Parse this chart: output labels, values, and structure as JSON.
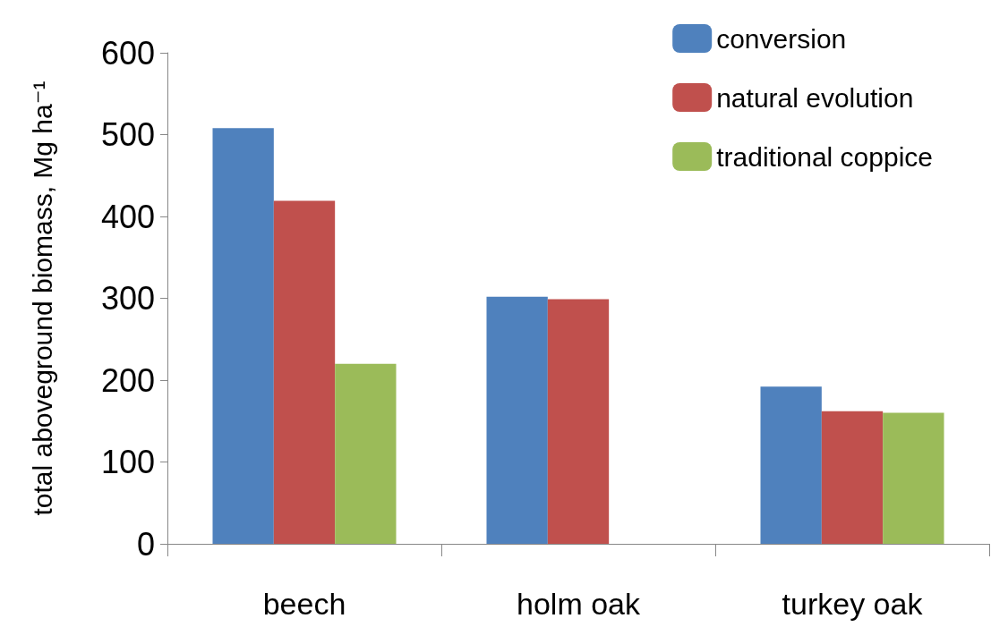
{
  "chart_data": {
    "type": "bar",
    "ylabel": "total aboveground biomass, Mg ha⁻¹",
    "categories": [
      "beech",
      "holm oak",
      "turkey oak"
    ],
    "series": [
      {
        "name": "conversion",
        "color": "#4f81bd",
        "values": [
          508,
          302,
          192
        ]
      },
      {
        "name": "natural evolution",
        "color": "#c0504d",
        "values": [
          419,
          299,
          162
        ]
      },
      {
        "name": "traditional coppice",
        "color": "#9bbb59",
        "values": [
          220,
          null,
          160
        ]
      }
    ],
    "ylim": [
      0,
      600
    ],
    "yticks": [
      0,
      100,
      200,
      300,
      400,
      500,
      600
    ],
    "grid": false,
    "legend": "top right"
  }
}
